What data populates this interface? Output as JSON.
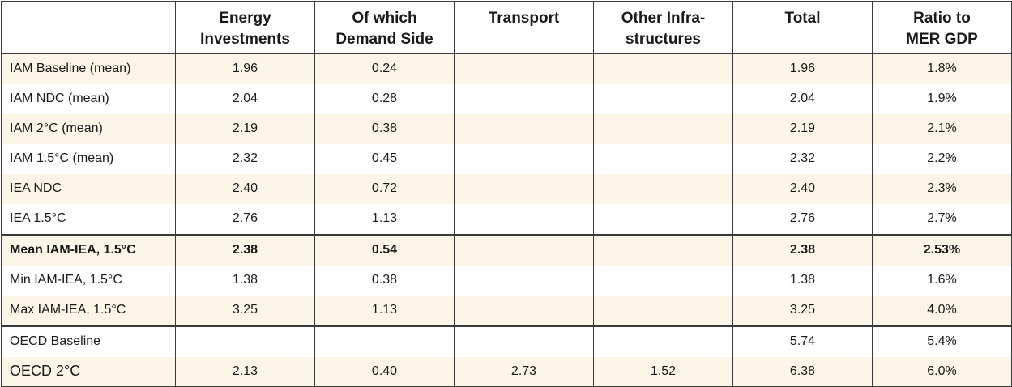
{
  "headers": [
    "",
    "Energy Investments",
    "Of which Demand Side",
    "Transport",
    "Other Infra-structures",
    "Total",
    "Ratio to MER GDP"
  ],
  "header_lines": [
    [
      ""
    ],
    [
      "Energy",
      "Investments"
    ],
    [
      "Of which",
      "Demand Side"
    ],
    [
      "Transport"
    ],
    [
      "Other Infra-",
      "structures"
    ],
    [
      "Total"
    ],
    [
      "Ratio to",
      "MER GDP"
    ]
  ],
  "rows": [
    [
      "IAM Baseline (mean)",
      "1.96",
      "0.24",
      "",
      "",
      "1.96",
      "1.8%"
    ],
    [
      "IAM NDC (mean)",
      "2.04",
      "0.28",
      "",
      "",
      "2.04",
      "1.9%"
    ],
    [
      "IAM 2°C (mean)",
      "2.19",
      "0.38",
      "",
      "",
      "2.19",
      "2.1%"
    ],
    [
      "IAM 1.5°C (mean)",
      "2.32",
      "0.45",
      "",
      "",
      "2.32",
      "2.2%"
    ],
    [
      "IEA NDC",
      "2.40",
      "0.72",
      "",
      "",
      "2.40",
      "2.3%"
    ],
    [
      "IEA 1.5°C",
      "2.76",
      "1.13",
      "",
      "",
      "2.76",
      "2.7%"
    ],
    [
      "Mean IAM-IEA, 1.5°C",
      "2.38",
      "0.54",
      "",
      "",
      "2.38",
      "2.53%"
    ],
    [
      "Min IAM-IEA, 1.5°C",
      "1.38",
      "0.38",
      "",
      "",
      "1.38",
      "1.6%"
    ],
    [
      "Max IAM-IEA, 1.5°C",
      "3.25",
      "1.13",
      "",
      "",
      "3.25",
      "4.0%"
    ],
    [
      "OECD Baseline",
      "",
      "",
      "",
      "",
      "5.74",
      "5.4%"
    ],
    [
      "OECD 2°C",
      "2.13",
      "0.40",
      "2.73",
      "1.52",
      "6.38",
      "6.0%"
    ]
  ],
  "colors": {
    "row_shade": "#fcf5e8",
    "border": "#3a3a3a",
    "text": "#1a1a1a"
  }
}
